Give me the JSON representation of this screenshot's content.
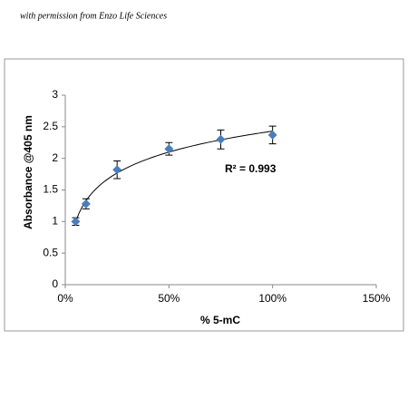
{
  "credit": "with permission from Enzo Life Sciences",
  "chart_data": {
    "type": "scatter",
    "x_label": "% 5-mC",
    "y_label": "Absorbance @405 nm",
    "annotation": "R² = 0.993",
    "trendline": "log",
    "series": [
      {
        "color": "#4a7ebb",
        "x": [
          5,
          10,
          25,
          50,
          75,
          100
        ],
        "values": [
          1.0,
          1.28,
          1.82,
          2.15,
          2.3,
          2.37
        ],
        "errors": [
          0.06,
          0.08,
          0.14,
          0.1,
          0.15,
          0.14
        ]
      }
    ],
    "xlim": [
      0,
      150
    ],
    "xticks": [
      {
        "value": 0,
        "label": "0%"
      },
      {
        "value": 50,
        "label": "50%"
      },
      {
        "value": 100,
        "label": "100%"
      },
      {
        "value": 150,
        "label": "150%"
      }
    ],
    "ylim": [
      0,
      3
    ],
    "yticks": [
      0,
      0.5,
      1,
      1.5,
      2,
      2.5,
      3
    ],
    "grid": false
  }
}
